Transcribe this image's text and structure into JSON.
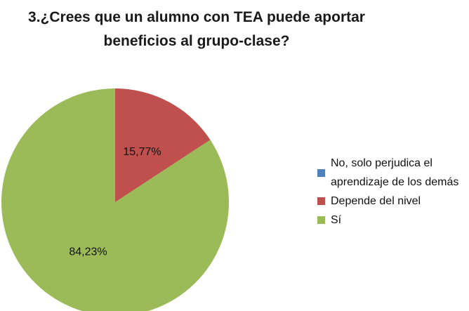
{
  "chart_data": {
    "type": "pie",
    "title": "3.¿Crees que un alumno con TEA puede aportar beneficios al grupo-clase?",
    "categories": [
      "No, solo perjudica el aprendizaje de los demás",
      "Depende del nivel",
      "Sí"
    ],
    "values": [
      0,
      15.77,
      84.23
    ],
    "value_labels": [
      null,
      "15,77%",
      "84,23%"
    ],
    "colors": [
      "#4f81bd",
      "#c0504d",
      "#9bbb59"
    ],
    "legend": "right"
  }
}
